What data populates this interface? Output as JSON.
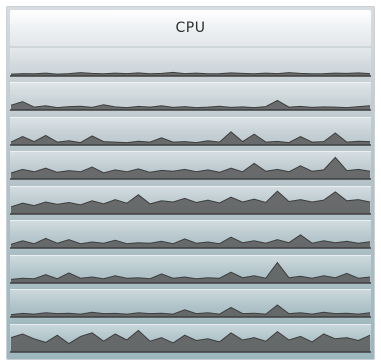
{
  "widget": {
    "title": "CPU"
  },
  "cpu_rows": [
    {
      "load": [
        0.08,
        0.1,
        0.09,
        0.12,
        0.08,
        0.1,
        0.14,
        0.11,
        0.09,
        0.12,
        0.1,
        0.13,
        0.09,
        0.11,
        0.15,
        0.1,
        0.12,
        0.09,
        0.1,
        0.13,
        0.11,
        0.09,
        0.12,
        0.1,
        0.14,
        0.11,
        0.09,
        0.1,
        0.12,
        0.11,
        0.13,
        0.1
      ]
    },
    {
      "load": [
        0.2,
        0.35,
        0.12,
        0.18,
        0.1,
        0.14,
        0.16,
        0.11,
        0.22,
        0.13,
        0.1,
        0.15,
        0.12,
        0.18,
        0.11,
        0.14,
        0.1,
        0.12,
        0.16,
        0.11,
        0.13,
        0.1,
        0.14,
        0.4,
        0.12,
        0.15,
        0.11,
        0.13,
        0.12,
        0.1,
        0.14,
        0.18
      ]
    },
    {
      "load": [
        0.12,
        0.35,
        0.14,
        0.4,
        0.12,
        0.18,
        0.1,
        0.38,
        0.14,
        0.12,
        0.1,
        0.16,
        0.12,
        0.3,
        0.12,
        0.14,
        0.1,
        0.18,
        0.12,
        0.55,
        0.14,
        0.45,
        0.12,
        0.15,
        0.1,
        0.35,
        0.12,
        0.14,
        0.5,
        0.12,
        0.16,
        0.14
      ]
    },
    {
      "load": [
        0.25,
        0.4,
        0.3,
        0.45,
        0.28,
        0.35,
        0.3,
        0.5,
        0.26,
        0.38,
        0.3,
        0.42,
        0.28,
        0.36,
        0.32,
        0.4,
        0.3,
        0.38,
        0.28,
        0.45,
        0.3,
        0.65,
        0.32,
        0.4,
        0.3,
        0.55,
        0.32,
        0.38,
        0.9,
        0.35,
        0.4,
        0.32
      ]
    },
    {
      "load": [
        0.3,
        0.45,
        0.35,
        0.5,
        0.4,
        0.48,
        0.38,
        0.55,
        0.42,
        0.6,
        0.45,
        0.8,
        0.42,
        0.55,
        0.5,
        0.65,
        0.48,
        0.58,
        0.46,
        0.7,
        0.5,
        0.62,
        0.48,
        0.95,
        0.52,
        0.6,
        0.5,
        0.58,
        0.92,
        0.55,
        0.6,
        0.5
      ]
    },
    {
      "load": [
        0.15,
        0.3,
        0.18,
        0.4,
        0.2,
        0.35,
        0.18,
        0.25,
        0.2,
        0.32,
        0.18,
        0.22,
        0.2,
        0.28,
        0.18,
        0.38,
        0.2,
        0.25,
        0.18,
        0.45,
        0.22,
        0.3,
        0.2,
        0.35,
        0.22,
        0.55,
        0.2,
        0.3,
        0.22,
        0.28,
        0.2,
        0.26
      ]
    },
    {
      "load": [
        0.15,
        0.2,
        0.18,
        0.35,
        0.18,
        0.42,
        0.2,
        0.25,
        0.18,
        0.3,
        0.2,
        0.22,
        0.18,
        0.38,
        0.2,
        0.25,
        0.18,
        0.22,
        0.2,
        0.45,
        0.22,
        0.3,
        0.2,
        0.85,
        0.22,
        0.28,
        0.2,
        0.3,
        0.22,
        0.4,
        0.2,
        0.25
      ]
    },
    {
      "load": [
        0.1,
        0.15,
        0.12,
        0.18,
        0.14,
        0.16,
        0.12,
        0.2,
        0.14,
        0.15,
        0.12,
        0.18,
        0.14,
        0.16,
        0.12,
        0.3,
        0.14,
        0.18,
        0.12,
        0.4,
        0.14,
        0.16,
        0.12,
        0.5,
        0.14,
        0.18,
        0.12,
        0.2,
        0.14,
        0.16,
        0.12,
        0.18
      ]
    },
    {
      "load": [
        0.6,
        0.75,
        0.55,
        0.4,
        0.7,
        0.35,
        0.65,
        0.8,
        0.45,
        0.75,
        0.5,
        0.9,
        0.45,
        0.6,
        0.38,
        0.7,
        0.48,
        0.55,
        0.42,
        0.8,
        0.5,
        0.6,
        0.45,
        0.85,
        0.5,
        0.65,
        0.42,
        0.75,
        0.55,
        0.6,
        0.48,
        0.7
      ]
    }
  ],
  "colors": {
    "graph_fill": "#595959",
    "graph_line": "#3e3e3e"
  }
}
